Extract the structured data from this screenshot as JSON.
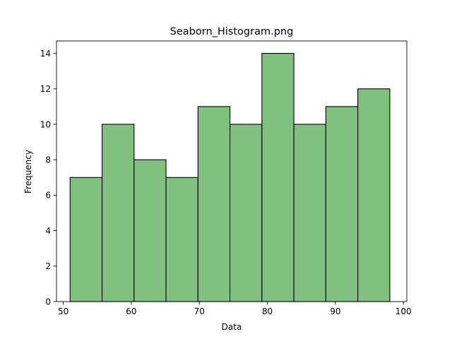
{
  "chart_data": {
    "type": "histogram",
    "title": "Seaborn_Histogram.png",
    "xlabel": "Data",
    "ylabel": "Frequency",
    "xlim": [
      49,
      100.5
    ],
    "ylim": [
      0,
      14.7
    ],
    "bin_edges": [
      51.0,
      55.7,
      60.4,
      65.1,
      69.8,
      74.5,
      79.2,
      83.9,
      88.6,
      93.3,
      98.0
    ],
    "counts": [
      7,
      10,
      8,
      7,
      11,
      10,
      14,
      10,
      11,
      12
    ],
    "x_ticks": [
      50,
      60,
      70,
      80,
      90,
      100
    ],
    "y_ticks": [
      0,
      2,
      4,
      6,
      8,
      10,
      12,
      14
    ],
    "bar_color": "#80c180",
    "edge_color": "#000000",
    "grid": false,
    "legend": "none"
  }
}
